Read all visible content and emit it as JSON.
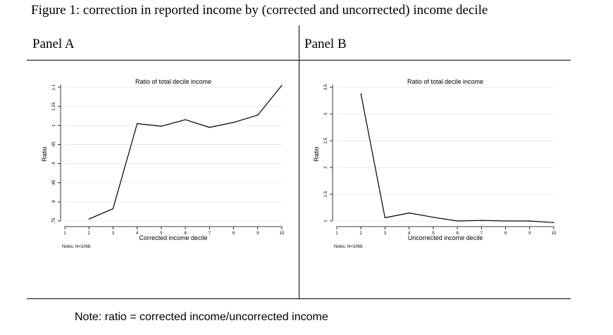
{
  "figure_title": "Figure 1: correction in reported income by (corrected and uncorrected) income decile",
  "panels": {
    "a_label": "Panel A",
    "b_label": "Panel B"
  },
  "footnote": "Note: ratio = corrected income/uncorrected income",
  "colors": {
    "line": "#000000",
    "background": "#ffffff"
  },
  "chart_data": [
    {
      "type": "line",
      "title": "Ratio of total decile income",
      "xlabel": "Corrected income decile",
      "ylabel": "Ratio",
      "note": "Notes: N=1068.",
      "xlim": [
        1,
        10
      ],
      "ylim": [
        0.75,
        1.1
      ],
      "xticks": [
        "1",
        "2",
        "3",
        "4",
        "5",
        "6",
        "7",
        "8",
        "9",
        "10"
      ],
      "yticks": [
        {
          "value": 0.75,
          "label": ".75"
        },
        {
          "value": 0.8,
          "label": ".8"
        },
        {
          "value": 0.85,
          "label": ".85"
        },
        {
          "value": 0.9,
          "label": ".9"
        },
        {
          "value": 0.95,
          "label": ".95"
        },
        {
          "value": 1.0,
          "label": "1"
        },
        {
          "value": 1.05,
          "label": "1.05"
        },
        {
          "value": 1.1,
          "label": "1.1"
        }
      ],
      "grid": true,
      "series": [
        {
          "x": [
            2,
            3,
            4,
            5,
            6,
            7,
            8,
            9,
            10
          ],
          "y": [
            0.755,
            0.782,
            1.005,
            0.998,
            1.015,
            0.995,
            1.008,
            1.027,
            1.105
          ]
        }
      ]
    },
    {
      "type": "line",
      "title": "Ratio of total decile income",
      "xlabel": "Uncorrected income decile",
      "ylabel": "Ratio",
      "note": "Notes: N=1068.",
      "xlim": [
        1,
        10
      ],
      "ylim": [
        1,
        3.5
      ],
      "xticks": [
        "1",
        "2",
        "3",
        "4",
        "5",
        "6",
        "7",
        "8",
        "9",
        "10"
      ],
      "yticks": [
        {
          "value": 1,
          "label": "1"
        },
        {
          "value": 1.5,
          "label": "1.5"
        },
        {
          "value": 2,
          "label": "2"
        },
        {
          "value": 2.5,
          "label": "2.5"
        },
        {
          "value": 3,
          "label": "3"
        },
        {
          "value": 3.5,
          "label": "3.5"
        }
      ],
      "grid": true,
      "series": [
        {
          "x": [
            2,
            3,
            4,
            5,
            6,
            7,
            8,
            9,
            10
          ],
          "y": [
            3.38,
            1.06,
            1.15,
            1.07,
            1.0,
            1.01,
            1.0,
            1.0,
            0.97
          ]
        }
      ]
    }
  ]
}
